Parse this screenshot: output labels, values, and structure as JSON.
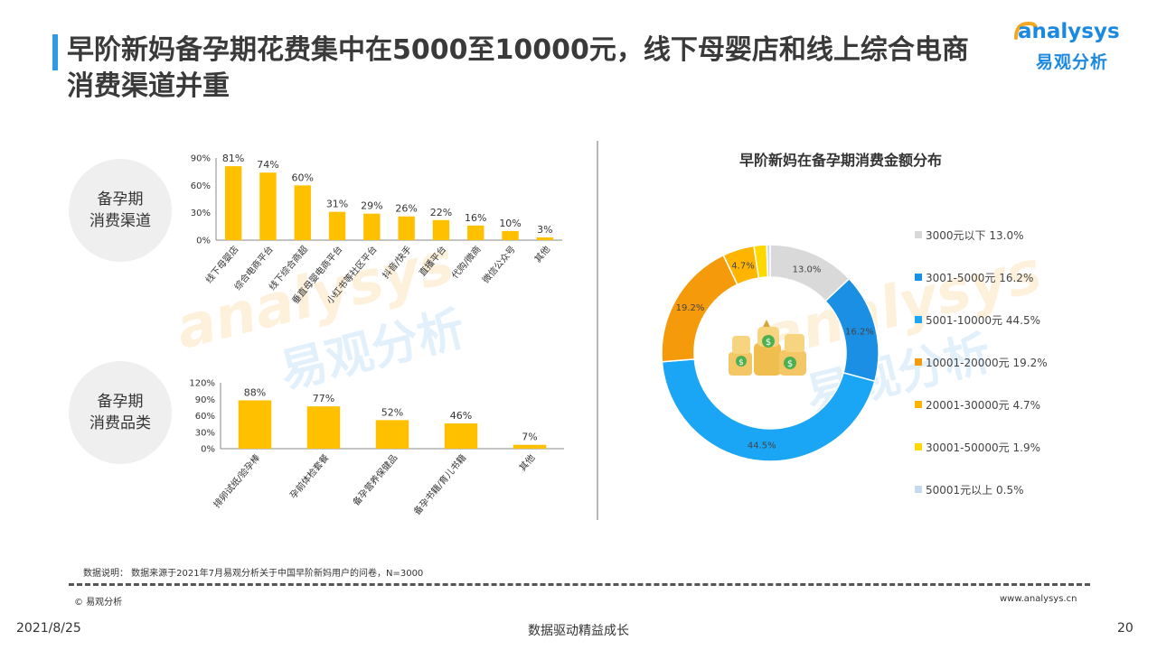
{
  "title": "早阶新妈备孕期花费集中在5000至10000元，线下母婴店和线上综合电商消费渠道并重",
  "logo": {
    "en": "analysys",
    "cn": "易观分析"
  },
  "watermark": {
    "en": "analysys",
    "cn": "易观分析"
  },
  "left_labels": {
    "channel": [
      "备孕期",
      "消费渠道"
    ],
    "category": [
      "备孕期",
      "消费品类"
    ]
  },
  "chart_data": [
    {
      "type": "bar",
      "categories": [
        "线下母婴店",
        "综合电商平台",
        "线下综合商超",
        "垂直母婴电商平台",
        "小红书等社区平台",
        "抖音/快手",
        "直播平台",
        "代购/微商",
        "微信公众号",
        "其他"
      ],
      "values": [
        81,
        74,
        60,
        31,
        29,
        26,
        22,
        16,
        10,
        3
      ],
      "value_labels": [
        "81%",
        "74%",
        "60%",
        "31%",
        "29%",
        "26%",
        "22%",
        "16%",
        "10%",
        "3%"
      ],
      "ylim": [
        0,
        90
      ],
      "yticks": [
        "0%",
        "30%",
        "60%",
        "90%"
      ],
      "ytick_values": [
        0,
        30,
        60,
        90
      ],
      "color": "#ffc000"
    },
    {
      "type": "bar",
      "categories": [
        "排卵试纸/验孕棒",
        "孕前体检套餐",
        "备孕营养保健品",
        "备孕书籍/育儿书籍",
        "其他"
      ],
      "values": [
        88,
        77,
        52,
        46,
        7
      ],
      "value_labels": [
        "88%",
        "77%",
        "52%",
        "46%",
        "7%"
      ],
      "ylim": [
        0,
        120
      ],
      "yticks": [
        "0%",
        "30%",
        "60%",
        "90%",
        "120%"
      ],
      "ytick_values": [
        0,
        30,
        60,
        90,
        120
      ],
      "color": "#ffc000"
    },
    {
      "type": "pie",
      "title": "早阶新妈在备孕期消费金额分布",
      "labels": [
        "3000元以下",
        "3001-5000元",
        "5001-10000元",
        "10001-20000元",
        "20001-30000元",
        "30001-50000元",
        "50001元以上"
      ],
      "values": [
        13.0,
        16.2,
        44.5,
        19.2,
        4.7,
        1.9,
        0.5
      ],
      "legend_labels": [
        "3000元以下 13.0%",
        "3001-5000元 16.2%",
        "5001-10000元 44.5%",
        "10001-20000元 19.2%",
        "20001-30000元 4.7%",
        "30001-50000元 1.9%",
        "50001元以上 0.5%"
      ],
      "slice_labels": [
        "13.0%",
        "16.2%",
        "44.5%",
        "19.2%",
        "4.7%",
        "",
        ""
      ],
      "colors": [
        "#d9d9d9",
        "#1a8fe3",
        "#1aa6f5",
        "#f59b0b",
        "#ffb400",
        "#ffd800",
        "#c5d9ef"
      ],
      "legend_position": "right"
    }
  ],
  "note": "数据说明：  数据来源于2021年7月易观分析关于中国早阶新妈用户的问卷，N=3000",
  "copyright": "© 易观分析",
  "site": "www.analysys.cn",
  "footer": {
    "date": "2021/8/25",
    "center": "数据驱动精益成长",
    "page": "20"
  }
}
